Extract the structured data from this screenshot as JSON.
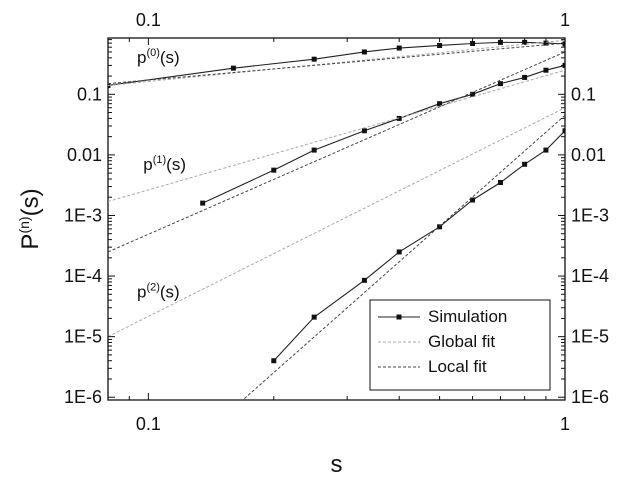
{
  "chart_data": {
    "type": "line",
    "xscale": "log",
    "yscale": "log",
    "xlim": [
      0.08,
      1.0
    ],
    "ylim": [
      9e-07,
      0.85
    ],
    "xlabel": "s",
    "ylabel_main": "P",
    "ylabel_sup": "(n)",
    "ylabel_tail": "(s)",
    "x_ticks": [
      {
        "value": 0.1,
        "label": "0.1"
      },
      {
        "value": 1,
        "label": "1"
      }
    ],
    "y_ticks": [
      {
        "value": 0.1,
        "label": "0.1"
      },
      {
        "value": 0.01,
        "label": "0.01"
      },
      {
        "value": 0.001,
        "label": "1E-3"
      },
      {
        "value": 0.0001,
        "label": "1E-4"
      },
      {
        "value": 1e-05,
        "label": "1E-5"
      },
      {
        "value": 1e-06,
        "label": "1E-6"
      }
    ],
    "annotations": [
      {
        "main": "p",
        "sup": "(0)",
        "tail": "(s)",
        "x": 0.085,
        "y": 0.33
      },
      {
        "main": "p",
        "sup": "(1)",
        "tail": "(s)",
        "x": 0.088,
        "y": 0.0056
      },
      {
        "main": "p",
        "sup": "(2)",
        "tail": "(s)",
        "x": 0.085,
        "y": 4.4e-05
      }
    ],
    "legend": {
      "position": "bottom-right",
      "items": [
        {
          "label": "Simulation",
          "style": "markers"
        },
        {
          "label": "Global fit",
          "style": "light-dashed"
        },
        {
          "label": "Local fit",
          "style": "dark-dashed"
        }
      ]
    },
    "series": [
      {
        "name": "Simulation",
        "x": [
          0.08,
          0.16,
          0.25,
          0.33,
          0.4,
          0.5,
          0.6,
          0.7,
          0.8,
          0.9,
          1.0
        ],
        "y": [
          0.14,
          0.27,
          0.38,
          0.5,
          0.58,
          0.64,
          0.69,
          0.72,
          0.72,
          0.7,
          0.68
        ]
      },
      {
        "name": "Simulation",
        "x": [
          0.135,
          0.2,
          0.25,
          0.33,
          0.4,
          0.5,
          0.6,
          0.7,
          0.8,
          0.9,
          1.0
        ],
        "y": [
          0.0016,
          0.0056,
          0.012,
          0.025,
          0.04,
          0.07,
          0.1,
          0.15,
          0.19,
          0.25,
          0.3
        ]
      },
      {
        "name": "Simulation",
        "x": [
          0.2,
          0.25,
          0.33,
          0.4,
          0.5,
          0.6,
          0.7,
          0.8,
          0.9,
          1.0
        ],
        "y": [
          4e-06,
          2.1e-05,
          8.5e-05,
          0.00025,
          0.00065,
          0.0018,
          0.0035,
          0.007,
          0.012,
          0.025
        ]
      },
      {
        "name": "Global fit",
        "x": [
          0.08,
          1.0
        ],
        "y": [
          0.14,
          0.78
        ]
      },
      {
        "name": "Global fit",
        "x": [
          0.08,
          1.0
        ],
        "y": [
          0.0017,
          0.25
        ]
      },
      {
        "name": "Global fit",
        "x": [
          0.08,
          1.0
        ],
        "y": [
          1e-05,
          0.06
        ]
      },
      {
        "name": "Local fit",
        "x": [
          0.08,
          1.0
        ],
        "y": [
          0.15,
          0.7
        ]
      },
      {
        "name": "Local fit",
        "x": [
          0.08,
          1.0
        ],
        "y": [
          0.00025,
          0.5
        ]
      },
      {
        "name": "Local fit",
        "x": [
          0.17,
          1.0
        ],
        "y": [
          9.5e-07,
          0.045
        ]
      }
    ]
  }
}
